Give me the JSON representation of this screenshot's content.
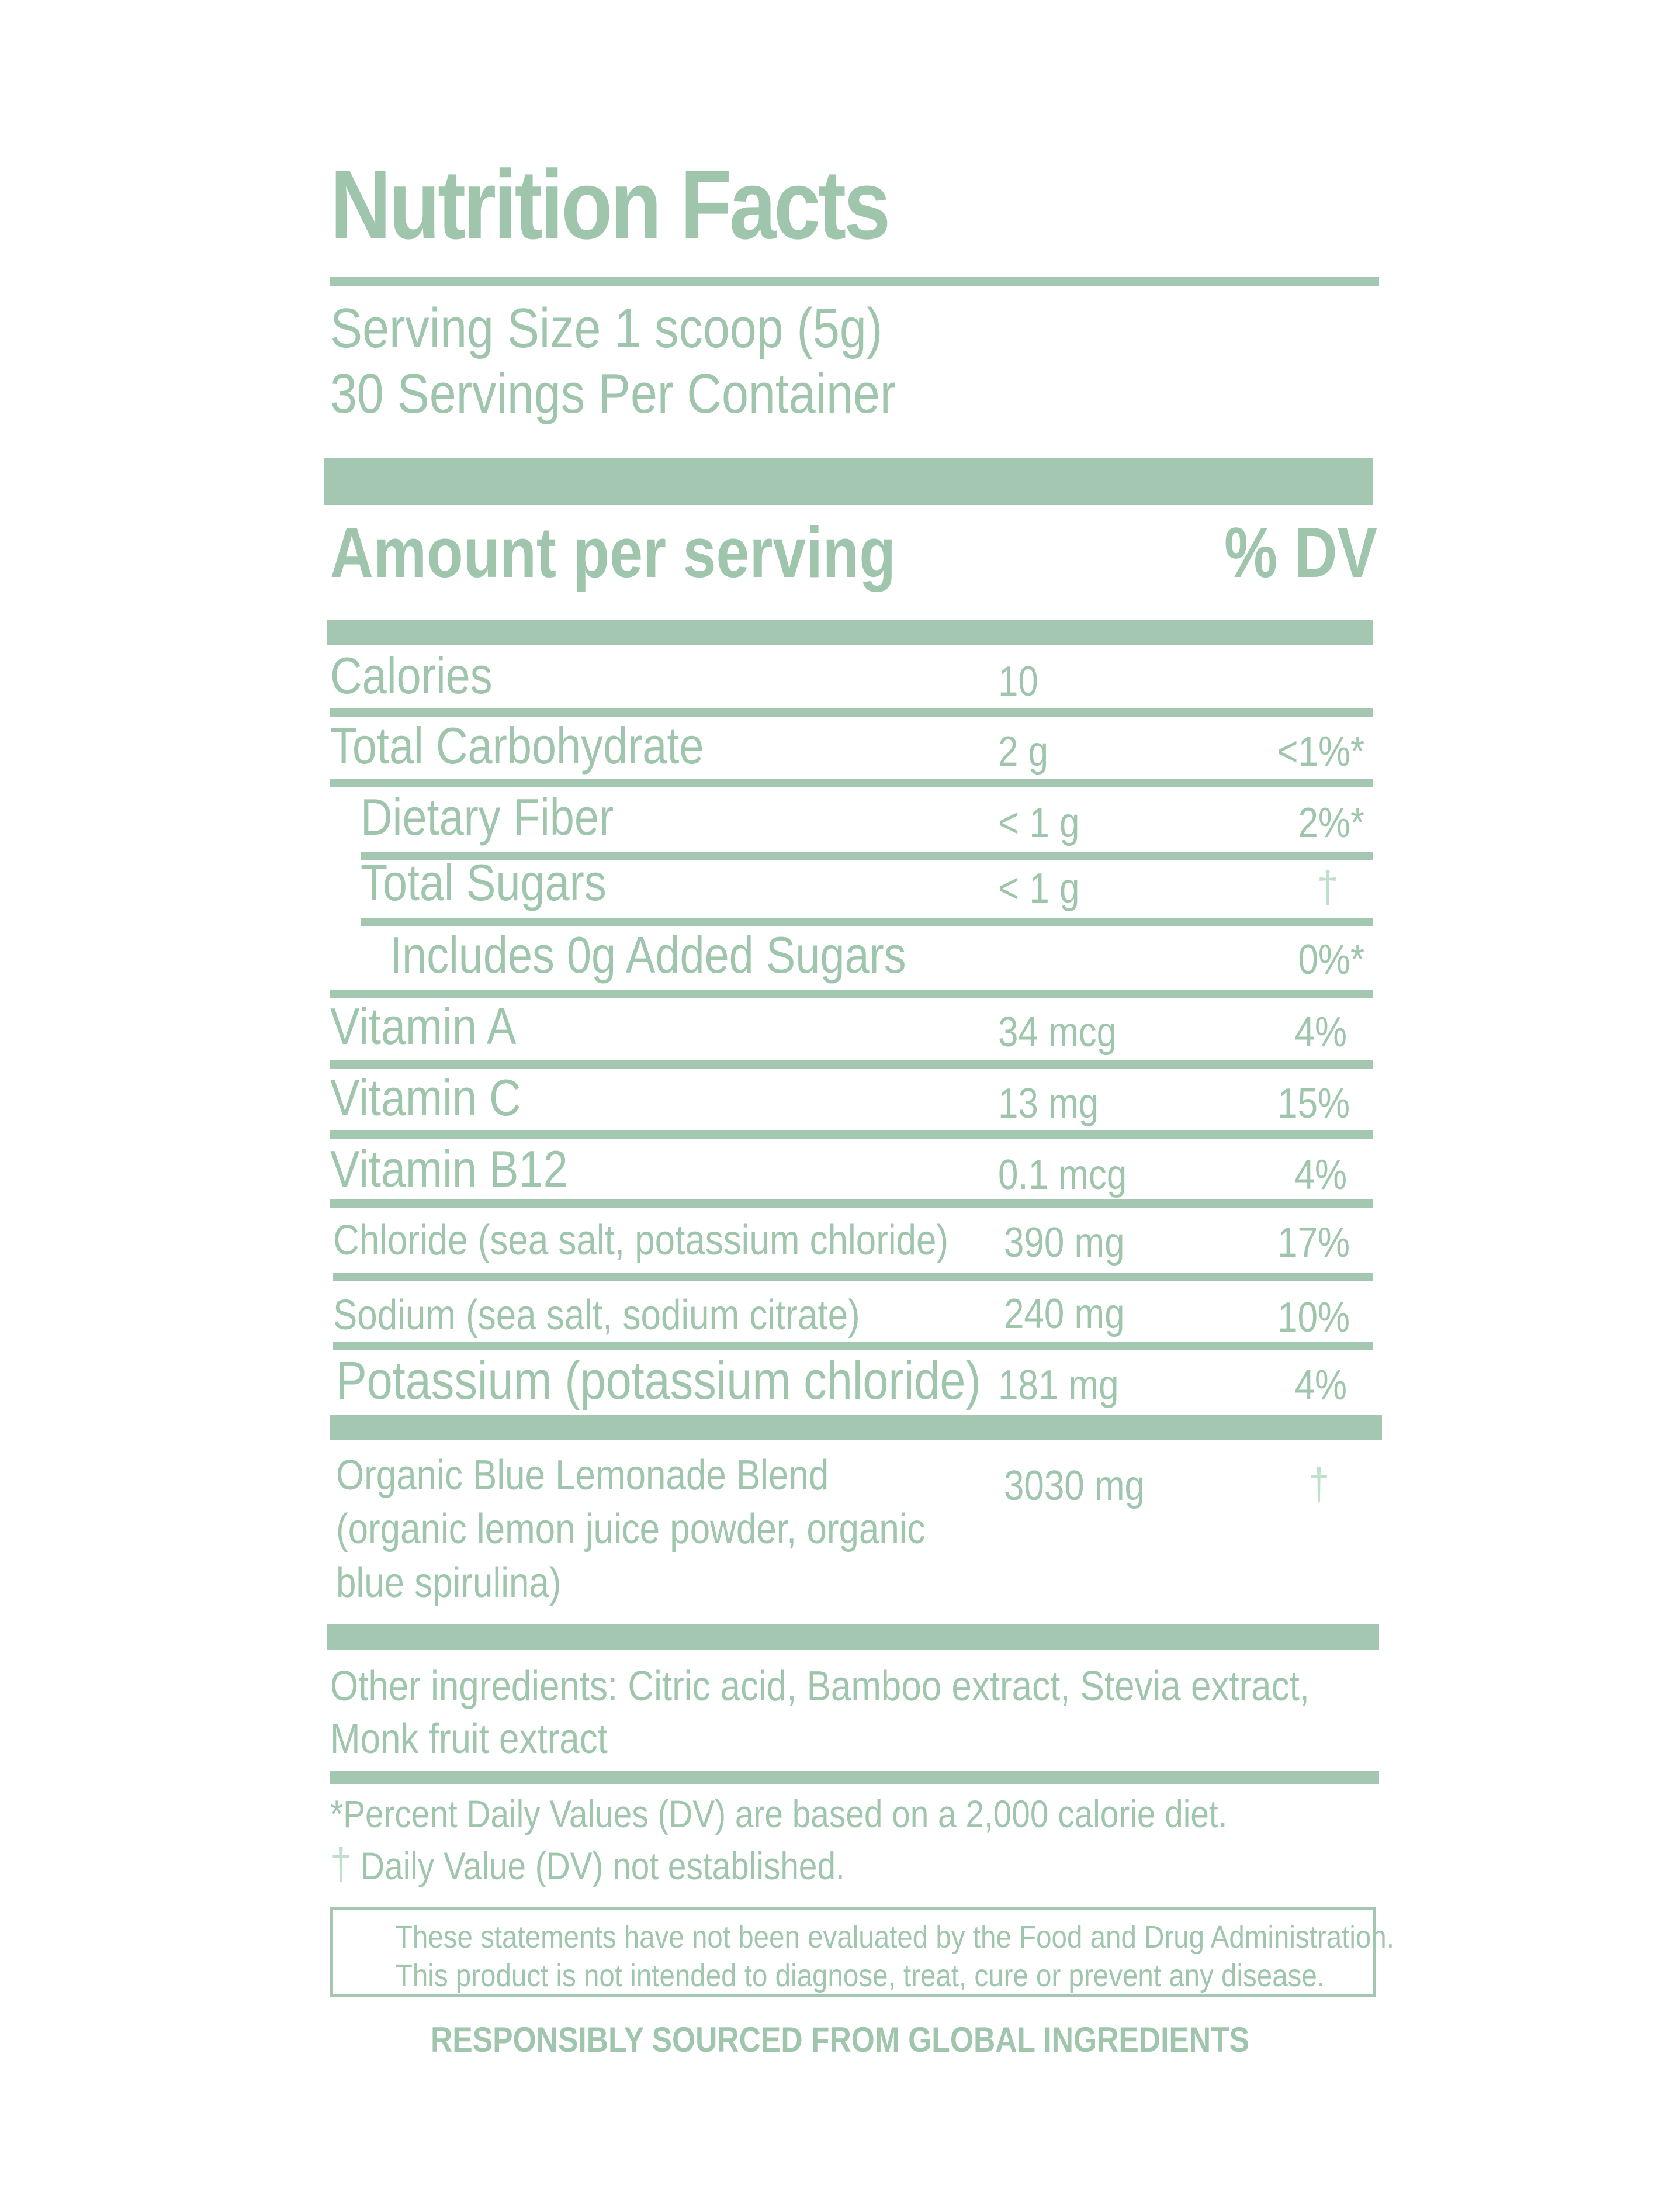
{
  "title": "Nutrition Facts",
  "serving": {
    "size": "Serving Size 1 scoop  (5g)",
    "per_container": "30 Servings Per Container"
  },
  "header": {
    "amount": "Amount per serving",
    "dv": "% DV"
  },
  "rows": [
    {
      "label": "Calories",
      "amount": "10",
      "dv": ""
    },
    {
      "label": "Total Carbohydrate",
      "amount": "2 g",
      "dv": "<1%*"
    },
    {
      "label": "Dietary Fiber",
      "amount": "< 1 g",
      "dv": "2%*"
    },
    {
      "label": "Total Sugars",
      "amount": "< 1 g",
      "dv": "†"
    },
    {
      "label": "Includes 0g Added Sugars",
      "amount": "",
      "dv": "0%*"
    },
    {
      "label": "Vitamin A",
      "amount": "34 mcg",
      "dv": "4%"
    },
    {
      "label": "Vitamin C",
      "amount": "13 mg",
      "dv": "15%"
    },
    {
      "label": "Vitamin B12",
      "amount": "0.1 mcg",
      "dv": "4%"
    },
    {
      "label": "Chloride (sea salt, potassium chloride)",
      "amount": "390 mg",
      "dv": "17%"
    },
    {
      "label": "Sodium (sea salt, sodium citrate)",
      "amount": "240 mg",
      "dv": "10%"
    },
    {
      "label": "Potassium (potassium chloride)",
      "amount": "181 mg",
      "dv": "4%"
    }
  ],
  "blend": {
    "line1": "Organic Blue Lemonade Blend",
    "line2": "(organic lemon juice powder, organic",
    "line3": "blue spirulina)",
    "amount": "3030 mg",
    "dv": "†"
  },
  "other_ingredients": {
    "line1": "Other ingredients: Citric acid, Bamboo extract, Stevia extract,",
    "line2": "Monk fruit extract"
  },
  "footnotes": {
    "percent": "*Percent Daily Values (DV) are based on a 2,000 calorie diet.",
    "dagger_symbol": "†",
    "dagger_text": "Daily Value (DV) not established."
  },
  "disclaimer": {
    "line1": "These statements have not been evaluated by the Food and Drug Administration.",
    "line2": "This product is not intended to diagnose, treat, cure or prevent any disease."
  },
  "sourced": "RESPONSIBLY SOURCED FROM GLOBAL INGREDIENTS",
  "colors": {
    "accent": "#a3c7b0",
    "text": "#9fc6ad",
    "dagger": "#bfe0cb"
  }
}
